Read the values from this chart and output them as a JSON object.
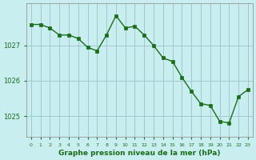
{
  "x": [
    0,
    1,
    2,
    3,
    4,
    5,
    6,
    7,
    8,
    9,
    10,
    11,
    12,
    13,
    14,
    15,
    16,
    17,
    18,
    19,
    20,
    21,
    22,
    23
  ],
  "y": [
    1027.6,
    1027.6,
    1027.5,
    1027.3,
    1027.3,
    1027.2,
    1026.95,
    1026.85,
    1027.3,
    1027.85,
    1027.5,
    1027.55,
    1027.3,
    1027.0,
    1026.65,
    1026.55,
    1026.1,
    1025.7,
    1025.35,
    1025.3,
    1024.85,
    1024.8,
    1025.55,
    1025.75
  ],
  "line_color": "#1a6e1a",
  "marker_color": "#1a6e1a",
  "bg_color": "#c8eef0",
  "grid_color": "#a0c8d0",
  "xlabel": "Graphe pression niveau de la mer (hPa)",
  "xlabel_color": "#1a6e1a",
  "tick_color": "#1a6e1a",
  "ylim": [
    1024.4,
    1028.2
  ],
  "yticks": [
    1025,
    1026,
    1027
  ],
  "xticks": [
    0,
    1,
    2,
    3,
    4,
    5,
    6,
    7,
    8,
    9,
    10,
    11,
    12,
    13,
    14,
    15,
    16,
    17,
    18,
    19,
    20,
    21,
    22,
    23
  ],
  "xtick_labels": [
    "0",
    "1",
    "2",
    "3",
    "4",
    "5",
    "6",
    "7",
    "8",
    "9",
    "10",
    "11",
    "12",
    "13",
    "14",
    "15",
    "16",
    "17",
    "18",
    "19",
    "20",
    "21",
    "22",
    "23"
  ]
}
